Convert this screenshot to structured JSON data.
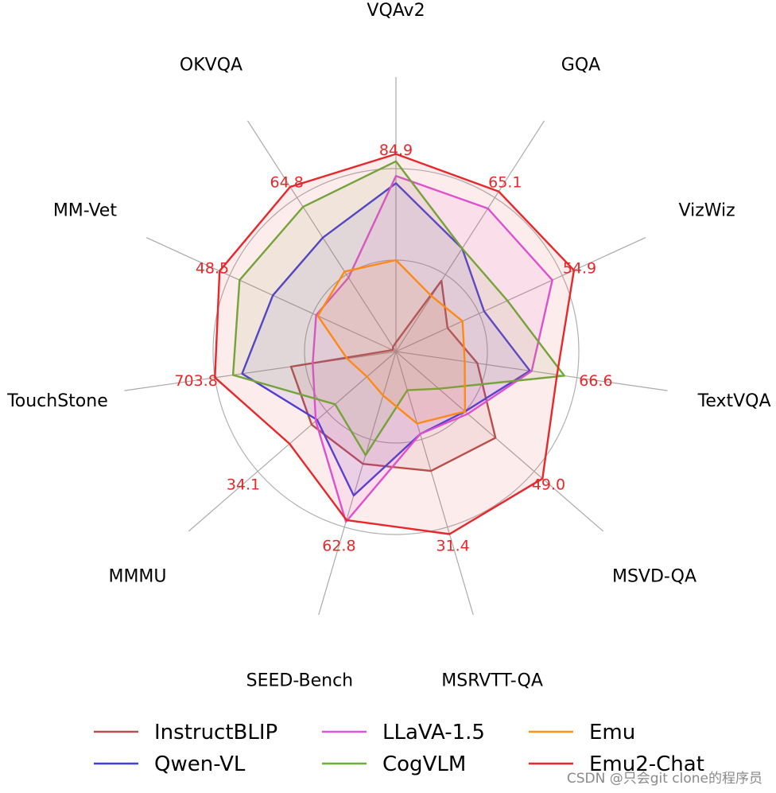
{
  "chart_data": {
    "type": "radar",
    "axes": [
      "VQAv2",
      "GQA",
      "VizWiz",
      "TextVQA",
      "MSVD-QA",
      "MSRVTT-QA",
      "SEED-Bench",
      "MMMU",
      "TouchStone",
      "MM-Vet",
      "OKVQA"
    ],
    "axis_max_labels": [
      "84.9",
      "65.1",
      "54.9",
      "66.6",
      "49.0",
      "31.4",
      "62.8",
      "34.1",
      "703.8",
      "48.5",
      "64.8"
    ],
    "value_scale": "each axis normalized to its best score (outer ring = best)",
    "rings": [
      0.5,
      1.0
    ],
    "grid": true,
    "legend_position": "bottom",
    "series": [
      {
        "name": "InstructBLIP",
        "color": "#b5524f",
        "values": [
          0.05,
          0.46,
          0.31,
          0.45,
          0.72,
          0.68,
          0.64,
          0.61,
          0.58,
          0.02,
          0.03
        ]
      },
      {
        "name": "Qwen-VL",
        "color": "#4040e0",
        "values": [
          0.92,
          0.67,
          0.53,
          0.74,
          0.5,
          0.47,
          0.82,
          0.57,
          0.85,
          0.74,
          0.74
        ]
      },
      {
        "name": "LLaVA-1.5",
        "color": "#dd55dd",
        "values": [
          0.96,
          0.93,
          0.94,
          0.75,
          0.52,
          0.47,
          0.97,
          0.58,
          0.46,
          0.48,
          0.48
        ]
      },
      {
        "name": "CogVLM",
        "color": "#6aaf3c",
        "values": [
          1.04,
          0.67,
          0.67,
          0.93,
          0.31,
          0.22,
          0.59,
          0.44,
          0.9,
          0.94,
          0.94
        ]
      },
      {
        "name": "Emu",
        "color": "#ff9314",
        "values": [
          0.5,
          0.36,
          0.4,
          0.38,
          0.5,
          0.41,
          0.25,
          0.21,
          0.27,
          0.47,
          0.52
        ]
      },
      {
        "name": "Emu2-Chat",
        "color": "#e8272a",
        "values": [
          1.08,
          1.04,
          1.07,
          0.89,
          1.06,
          1.04,
          0.96,
          0.77,
          1.0,
          1.06,
          1.07
        ]
      }
    ]
  },
  "watermark": "CSDN @只会git clone的程序员"
}
